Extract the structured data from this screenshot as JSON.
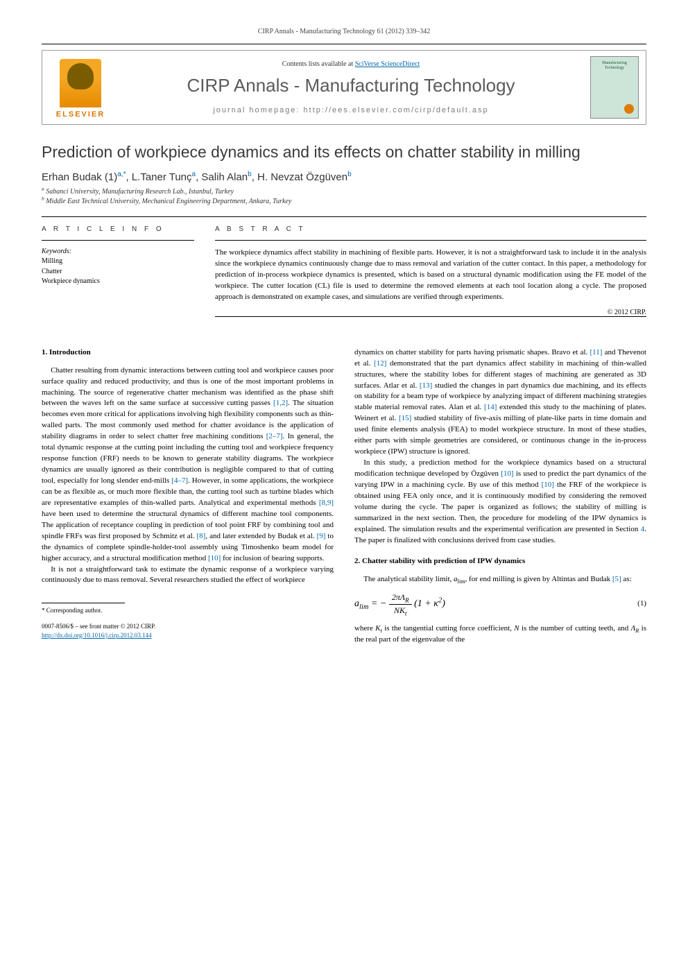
{
  "header": {
    "running_head": "CIRP Annals - Manufacturing Technology 61 (2012) 339–342"
  },
  "masthead": {
    "contents_line_prefix": "Contents lists available at ",
    "contents_line_link": "SciVerse ScienceDirect",
    "journal_name": "CIRP Annals - Manufacturing Technology",
    "homepage_label": "journal homepage: http://ees.elsevier.com/cirp/default.asp",
    "publisher_logo_text": "ELSEVIER",
    "cover_label": "Manufacturing Technology"
  },
  "article": {
    "title": "Prediction of workpiece dynamics and its effects on chatter stability in milling",
    "authors_html": "Erhan Budak (1)<sup>a,*</sup>, L.Taner Tunç<sup>a</sup>, Salih Alan<sup>b</sup>, H. Nevzat Özgüven<sup>b</sup>",
    "affiliations": [
      "Sabanci University, Manufacturing Research Lab., Istanbul, Turkey",
      "Middle East Technical University, Mechanical Engineering Department, Ankara, Turkey"
    ],
    "affil_markers": [
      "a",
      "b"
    ]
  },
  "info": {
    "head": "A R T I C L E  I N F O",
    "keywords_head": "Keywords:",
    "keywords": [
      "Milling",
      "Chatter",
      "Workpiece dynamics"
    ]
  },
  "abstract": {
    "head": "A B S T R A C T",
    "text": "The workpiece dynamics affect stability in machining of flexible parts. However, it is not a straightforward task to include it in the analysis since the workpiece dynamics continuously change due to mass removal and variation of the cutter contact. In this paper, a methodology for prediction of in-process workpiece dynamics is presented, which is based on a structural dynamic modification using the FE model of the workpiece. The cutter location (CL) file is used to determine the removed elements at each tool location along a cycle. The proposed approach is demonstrated on example cases, and simulations are verified through experiments.",
    "copyright": "© 2012 CIRP."
  },
  "sections": {
    "s1": {
      "head": "1. Introduction",
      "p1": "Chatter resulting from dynamic interactions between cutting tool and workpiece causes poor surface quality and reduced productivity, and thus is one of the most important problems in machining. The source of regenerative chatter mechanism was identified as the phase shift between the waves left on the same surface at successive cutting passes [1,2]. The situation becomes even more critical for applications involving high flexibility components such as thin-walled parts. The most commonly used method for chatter avoidance is the application of stability diagrams in order to select chatter free machining conditions [2–7]. In general, the total dynamic response at the cutting point including the cutting tool and workpiece frequency response function (FRF) needs to be known to generate stability diagrams. The workpiece dynamics are usually ignored as their contribution is negligible compared to that of cutting tool, especially for long slender end-mills [4–7]. However, in some applications, the workpiece can be as flexible as, or much more flexible than, the cutting tool such as turbine blades which are representative examples of thin-walled parts. Analytical and experimental methods [8,9] have been used to determine the structural dynamics of different machine tool components. The application of receptance coupling in prediction of tool point FRF by combining tool and spindle FRFs was first proposed by Schmitz et al. [8], and later extended by Budak et al. [9] to the dynamics of complete spindle-holder-tool assembly using Timoshenko beam model for higher accuracy, and a structural modification method [10] for inclusion of bearing supports.",
      "p2": "It is not a straightforward task to estimate the dynamic response of a workpiece varying continuously due to mass removal. Several researchers studied the effect of workpiece",
      "p3": "dynamics on chatter stability for parts having prismatic shapes. Bravo et al. [11] and Thevenot et al. [12] demonstrated that the part dynamics affect stability in machining of thin-walled structures, where the stability lobes for different stages of machining are generated as 3D surfaces. Atlar et al. [13] studied the changes in part dynamics due machining, and its effects on stability for a beam type of workpiece by analyzing impact of different machining strategies stable material removal rates. Alan et al. [14] extended this study to the machining of plates. Weinert et al. [15] studied stability of five-axis milling of plate-like parts in time domain and used finite elements analysis (FEA) to model workpiece structure. In most of these studies, either parts with simple geometries are considered, or continuous change in the in-process workpiece (IPW) structure is ignored.",
      "p4": "In this study, a prediction method for the workpiece dynamics based on a structural modification technique developed by Özgüven [10] is used to predict the part dynamics of the varying IPW in a machining cycle. By use of this method [10] the FRF of the workpiece is obtained using FEA only once, and it is continuously modified by considering the removed volume during the cycle. The paper is organized as follows; the stability of milling is summarized in the next section. Then, the procedure for modeling of the IPW dynamics is explained. The simulation results and the experimental verification are presented in Section 4. The paper is finalized with conclusions derived from case studies."
    },
    "s2": {
      "head": "2. Chatter stability with prediction of IPW dynamics",
      "p1_prefix": "The analytical stability limit, ",
      "p1_sym": "a",
      "p1_sub": "lim",
      "p1_suffix": ", for end milling is given by Altintas and Budak [5] as:",
      "eq1_label": "(1)",
      "p2": "where Kₜ is the tangential cutting force coefficient, N is the number of cutting teeth, and Λ_R is the real part of the eigenvalue of the"
    }
  },
  "footnote": {
    "corr": "* Corresponding author."
  },
  "doi": {
    "line1": "0007-8506/$ – see front matter © 2012 CIRP.",
    "line2": "http://dx.doi.org/10.1016/j.cirp.2012.03.144"
  },
  "refs": {
    "r1_2": "[1,2]",
    "r2_7": "[2–7]",
    "r4_7": "[4–7]",
    "r8_9": "[8,9]",
    "r8": "[8]",
    "r9": "[9]",
    "r10": "[10]",
    "r11": "[11]",
    "r12": "[12]",
    "r13": "[13]",
    "r14": "[14]",
    "r15": "[15]",
    "r4": "4",
    "r5": "[5]"
  },
  "colors": {
    "link": "#0066aa",
    "journal_name": "#5a5a5a",
    "elsevier": "#d97500"
  }
}
